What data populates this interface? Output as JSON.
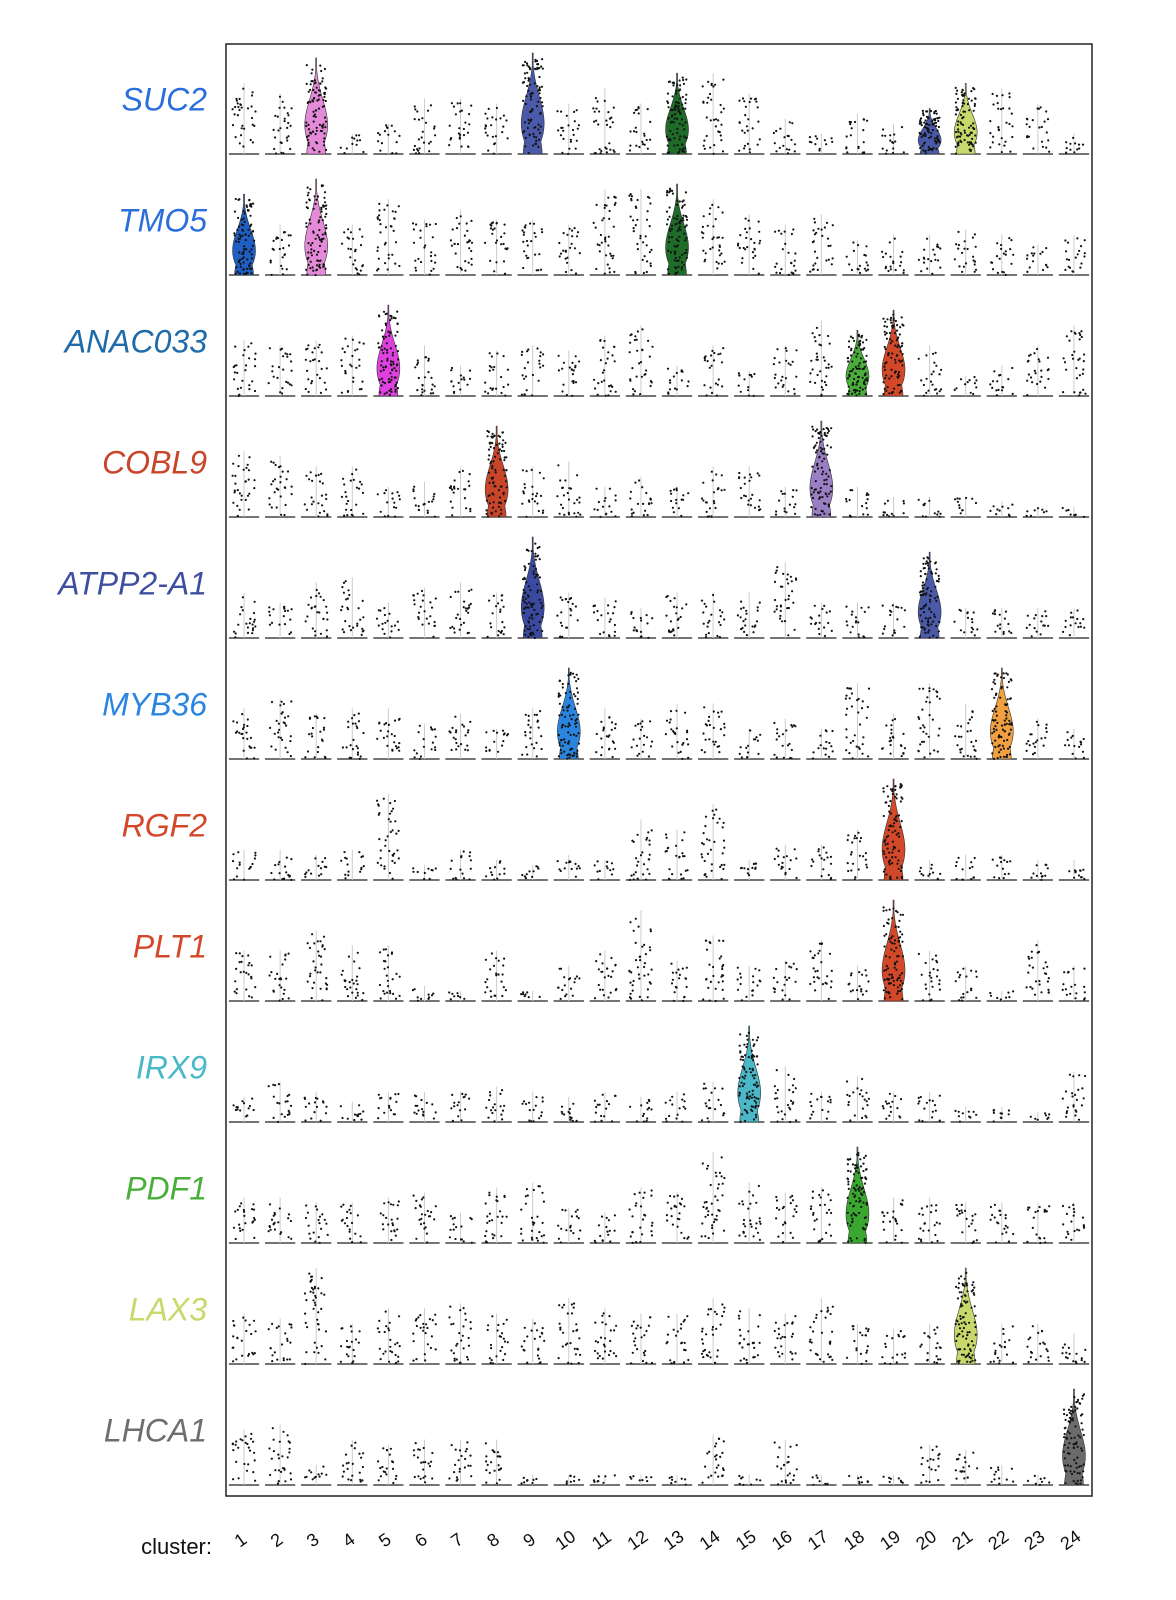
{
  "chart_data": {
    "type": "violin",
    "title": "",
    "xlabel": "cluster:",
    "categories": [
      "1",
      "2",
      "3",
      "4",
      "5",
      "6",
      "7",
      "8",
      "9",
      "10",
      "11",
      "12",
      "13",
      "14",
      "15",
      "16",
      "17",
      "18",
      "19",
      "20",
      "21",
      "22",
      "23",
      "24"
    ],
    "value_scale": "relative expression (0–1 within each gene row)",
    "genes": [
      {
        "name": "SUC2",
        "color": "#2a6fdb",
        "levels": [
          0.7,
          0.6,
          0.95,
          0.2,
          0.3,
          0.55,
          0.55,
          0.5,
          1.0,
          0.5,
          0.65,
          0.5,
          0.8,
          0.8,
          0.6,
          0.35,
          0.2,
          0.4,
          0.3,
          0.45,
          0.7,
          0.65,
          0.5,
          0.2
        ],
        "highlights": [
          {
            "cluster": "3",
            "color": "#e58ad9"
          },
          {
            "cluster": "9",
            "color": "#4a5aa8"
          },
          {
            "cluster": "13",
            "color": "#1f6b28"
          },
          {
            "cluster": "20",
            "color": "#4a5aa8"
          },
          {
            "cluster": "21",
            "color": "#c8d86a"
          }
        ]
      },
      {
        "name": "TMO5",
        "color": "#2a6fdb",
        "levels": [
          0.8,
          0.5,
          0.95,
          0.5,
          0.75,
          0.55,
          0.65,
          0.55,
          0.55,
          0.5,
          0.85,
          0.85,
          0.9,
          0.75,
          0.6,
          0.5,
          0.6,
          0.35,
          0.4,
          0.4,
          0.45,
          0.4,
          0.3,
          0.4
        ],
        "highlights": [
          {
            "cluster": "1",
            "color": "#1f5fc4"
          },
          {
            "cluster": "3",
            "color": "#e58ad9"
          },
          {
            "cluster": "13",
            "color": "#1f6b28"
          }
        ]
      },
      {
        "name": "ANAC033",
        "color": "#1f6aaa",
        "levels": [
          0.55,
          0.5,
          0.55,
          0.6,
          0.9,
          0.5,
          0.3,
          0.45,
          0.5,
          0.45,
          0.6,
          0.7,
          0.3,
          0.5,
          0.25,
          0.5,
          0.75,
          0.65,
          0.85,
          0.5,
          0.2,
          0.3,
          0.5,
          0.7
        ],
        "highlights": [
          {
            "cluster": "5",
            "color": "#e040e0"
          },
          {
            "cluster": "18",
            "color": "#4aae3a"
          },
          {
            "cluster": "19",
            "color": "#d4482a"
          }
        ]
      },
      {
        "name": "COBL9",
        "color": "#c8452a",
        "levels": [
          0.65,
          0.6,
          0.5,
          0.5,
          0.3,
          0.35,
          0.5,
          0.9,
          0.5,
          0.55,
          0.3,
          0.4,
          0.3,
          0.5,
          0.5,
          0.3,
          0.95,
          0.3,
          0.2,
          0.2,
          0.2,
          0.15,
          0.1,
          0.1
        ],
        "highlights": [
          {
            "cluster": "8",
            "color": "#c8452a"
          },
          {
            "cluster": "17",
            "color": "#9b7fc4"
          }
        ]
      },
      {
        "name": "ATPP2-A1",
        "color": "#3f4fa0",
        "levels": [
          0.45,
          0.35,
          0.55,
          0.6,
          0.35,
          0.5,
          0.55,
          0.45,
          1.0,
          0.45,
          0.4,
          0.3,
          0.45,
          0.45,
          0.45,
          0.75,
          0.35,
          0.35,
          0.35,
          0.85,
          0.3,
          0.3,
          0.3,
          0.3
        ],
        "highlights": [
          {
            "cluster": "9",
            "color": "#3a4aa0"
          },
          {
            "cluster": "20",
            "color": "#4a5aa8"
          }
        ]
      },
      {
        "name": "MYB36",
        "color": "#2a85e0",
        "levels": [
          0.5,
          0.6,
          0.45,
          0.5,
          0.5,
          0.35,
          0.45,
          0.3,
          0.5,
          0.9,
          0.5,
          0.4,
          0.55,
          0.55,
          0.3,
          0.4,
          0.3,
          0.75,
          0.45,
          0.75,
          0.55,
          0.9,
          0.4,
          0.3
        ],
        "highlights": [
          {
            "cluster": "10",
            "color": "#2a85e0"
          },
          {
            "cluster": "22",
            "color": "#f0a040"
          }
        ]
      },
      {
        "name": "RGF2",
        "color": "#d4482a",
        "levels": [
          0.3,
          0.3,
          0.25,
          0.3,
          0.85,
          0.15,
          0.3,
          0.2,
          0.15,
          0.25,
          0.2,
          0.6,
          0.5,
          0.75,
          0.2,
          0.35,
          0.35,
          0.5,
          1.0,
          0.2,
          0.25,
          0.25,
          0.2,
          0.2
        ],
        "highlights": [
          {
            "cluster": "19",
            "color": "#d4482a"
          }
        ]
      },
      {
        "name": "PLT1",
        "color": "#d4482a",
        "levels": [
          0.5,
          0.5,
          0.7,
          0.55,
          0.55,
          0.15,
          0.1,
          0.5,
          0.1,
          0.35,
          0.5,
          0.9,
          0.4,
          0.65,
          0.35,
          0.4,
          0.6,
          0.35,
          1.0,
          0.5,
          0.35,
          0.1,
          0.6,
          0.35
        ],
        "highlights": [
          {
            "cluster": "19",
            "color": "#d4482a"
          }
        ]
      },
      {
        "name": "IRX9",
        "color": "#4ab8c8",
        "levels": [
          0.25,
          0.4,
          0.3,
          0.2,
          0.3,
          0.3,
          0.3,
          0.35,
          0.3,
          0.25,
          0.3,
          0.25,
          0.3,
          0.4,
          0.95,
          0.55,
          0.3,
          0.45,
          0.3,
          0.3,
          0.15,
          0.15,
          0.1,
          0.5
        ],
        "highlights": [
          {
            "cluster": "15",
            "color": "#4ab8c8"
          }
        ]
      },
      {
        "name": "PDF1",
        "color": "#4aae3a",
        "levels": [
          0.45,
          0.45,
          0.4,
          0.4,
          0.45,
          0.5,
          0.3,
          0.55,
          0.6,
          0.35,
          0.3,
          0.55,
          0.5,
          0.9,
          0.6,
          0.5,
          0.55,
          0.95,
          0.45,
          0.45,
          0.4,
          0.4,
          0.4,
          0.4
        ],
        "highlights": [
          {
            "cluster": "18",
            "color": "#3aa830"
          }
        ]
      },
      {
        "name": "LAX3",
        "color": "#c8d86a",
        "levels": [
          0.5,
          0.45,
          0.95,
          0.4,
          0.55,
          0.55,
          0.6,
          0.5,
          0.45,
          0.65,
          0.55,
          0.5,
          0.5,
          0.65,
          0.55,
          0.5,
          0.65,
          0.4,
          0.35,
          0.4,
          0.95,
          0.4,
          0.4,
          0.3
        ],
        "highlights": [
          {
            "cluster": "21",
            "color": "#c8d86a"
          }
        ]
      },
      {
        "name": "LHCA1",
        "color": "#6e6e6e",
        "levels": [
          0.55,
          0.6,
          0.2,
          0.45,
          0.4,
          0.45,
          0.45,
          0.45,
          0.1,
          0.1,
          0.1,
          0.1,
          0.1,
          0.5,
          0.1,
          0.45,
          0.1,
          0.1,
          0.1,
          0.4,
          0.35,
          0.2,
          0.1,
          0.95
        ],
        "highlights": [
          {
            "cluster": "24",
            "color": "#6b6b6b"
          }
        ]
      }
    ]
  }
}
